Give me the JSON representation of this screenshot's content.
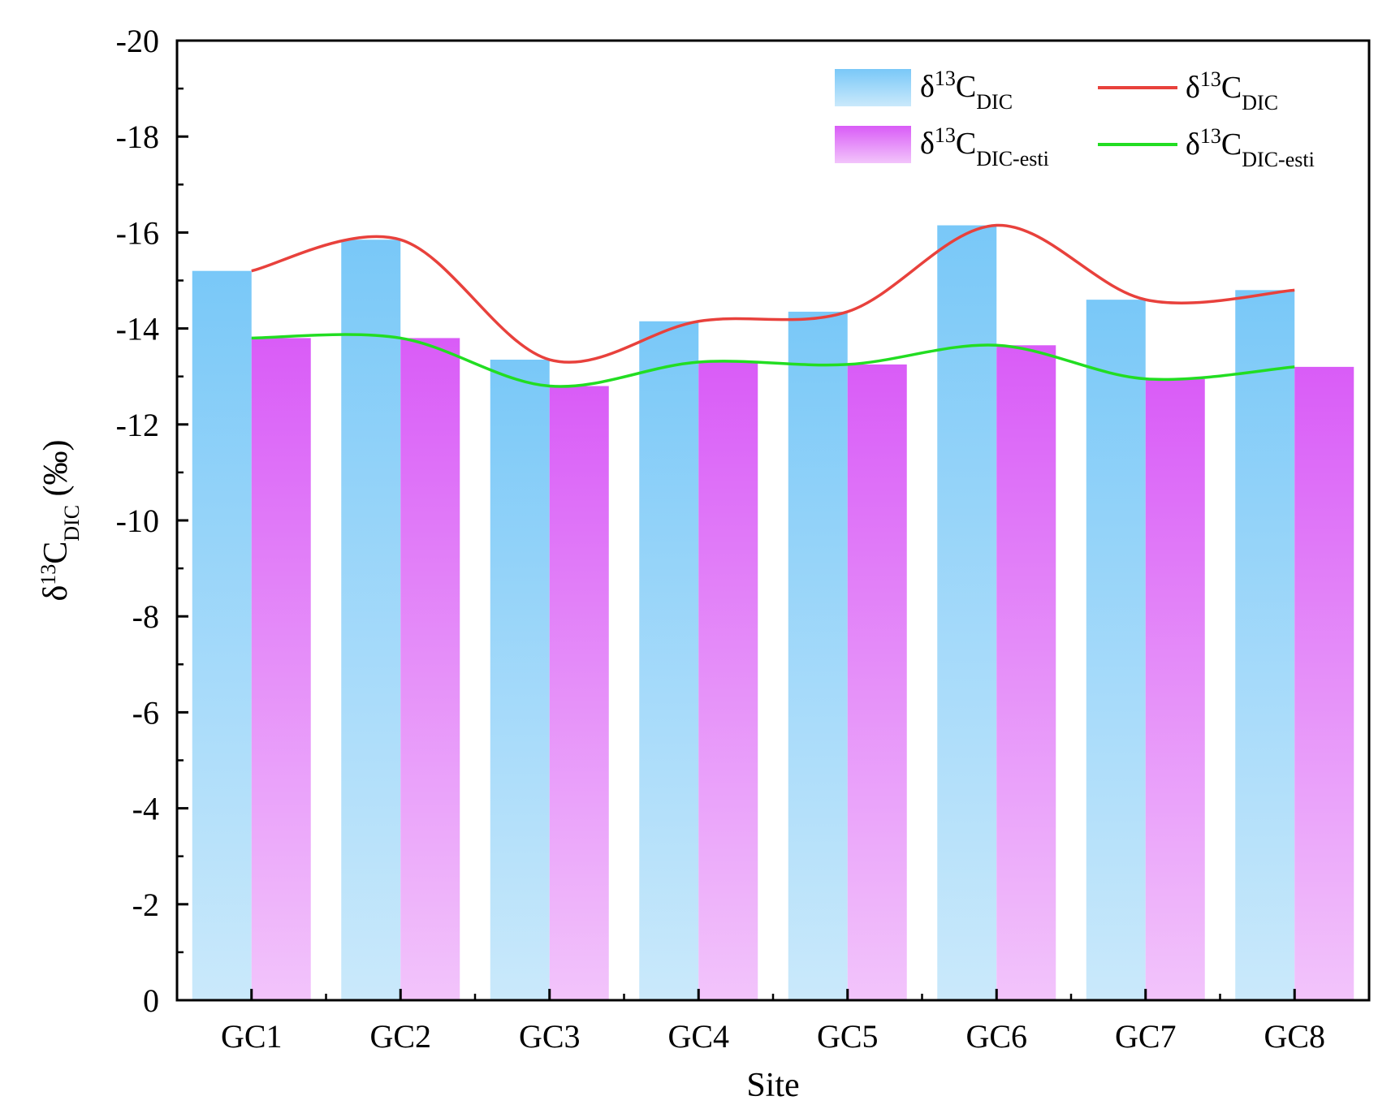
{
  "chart_data": {
    "type": "bar",
    "categories": [
      "GC1",
      "GC2",
      "GC3",
      "GC4",
      "GC5",
      "GC6",
      "GC7",
      "GC8"
    ],
    "series": [
      {
        "name_parts": {
          "base": "δ",
          "sup": "13",
          "main": "C",
          "sub": "DIC"
        },
        "values": [
          -15.2,
          -15.85,
          -13.35,
          -14.15,
          -14.35,
          -16.15,
          -14.6,
          -14.8
        ],
        "color_top": "#79c8f8",
        "color_bottom": "#cae9fb"
      },
      {
        "name_parts": {
          "base": "δ",
          "sup": "13",
          "main": "C",
          "sub": "DIC-esti"
        },
        "values": [
          -13.8,
          -13.8,
          -12.8,
          -13.3,
          -13.25,
          -13.65,
          -12.95,
          -13.2
        ],
        "color_top": "#d95cf7",
        "color_bottom": "#f2c4fb"
      }
    ],
    "lines": [
      {
        "name_parts": {
          "base": "δ",
          "sup": "13",
          "main": "C",
          "sub": "DIC"
        },
        "values": [
          -15.2,
          -15.85,
          -13.35,
          -14.15,
          -14.35,
          -16.15,
          -14.6,
          -14.8
        ],
        "color": "#e8413c"
      },
      {
        "name_parts": {
          "base": "δ",
          "sup": "13",
          "main": "C",
          "sub": "DIC-esti"
        },
        "values": [
          -13.8,
          -13.8,
          -12.8,
          -13.3,
          -13.25,
          -13.65,
          -12.95,
          -13.2
        ],
        "color": "#22dd22"
      }
    ],
    "xlabel": "Site",
    "ylabel_parts": {
      "base": "δ",
      "sup": "13",
      "main": "C",
      "sub": "DIC",
      "tail": " (‰)"
    },
    "ylim": [
      0,
      -20
    ],
    "yticks": [
      "-20",
      "-18",
      "-16",
      "-14",
      "-12",
      "-10",
      "-8",
      "-6",
      "-4",
      "-2",
      "0"
    ],
    "ytick_values": [
      -20,
      -18,
      -16,
      -14,
      -12,
      -10,
      -8,
      -6,
      -4,
      -2,
      0
    ],
    "grid": false,
    "legend_position": "top-right"
  }
}
